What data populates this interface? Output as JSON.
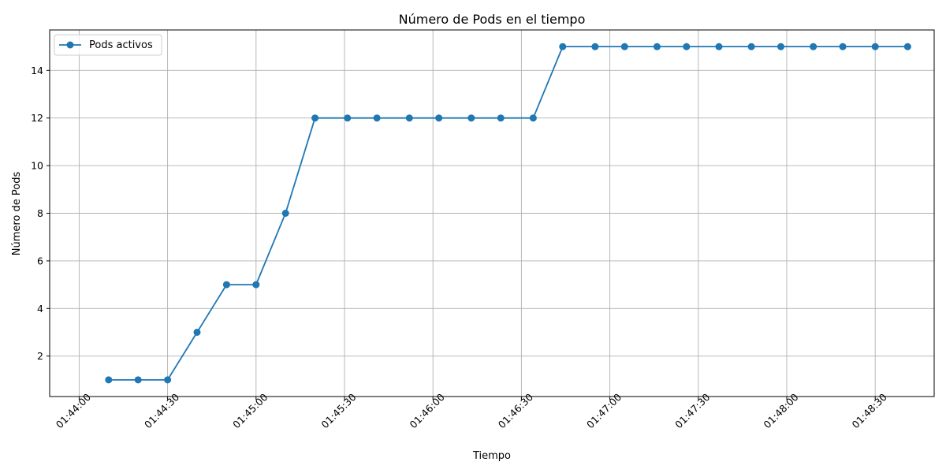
{
  "chart_data": {
    "type": "line",
    "title": "Número de Pods en el tiempo",
    "xlabel": "Tiempo",
    "ylabel": "Número de Pods",
    "x_axis": "time",
    "xlim": [
      "01:43:50",
      "01:48:50"
    ],
    "ylim": [
      0.3,
      15.7
    ],
    "x_ticks": [
      "01:44:00",
      "01:44:30",
      "01:45:00",
      "01:45:30",
      "01:46:00",
      "01:46:30",
      "01:47:00",
      "01:47:30",
      "01:48:00",
      "01:48:30"
    ],
    "y_ticks": [
      2,
      4,
      6,
      8,
      10,
      12,
      14
    ],
    "grid": true,
    "legend_position": "top-left",
    "series": [
      {
        "name": "Pods activos",
        "color": "#1f77b4",
        "marker": "circle",
        "x": [
          "01:44:10",
          "01:44:20",
          "01:44:30",
          "01:44:40",
          "01:44:50",
          "01:45:00",
          "01:45:10",
          "01:45:20",
          "01:45:31",
          "01:45:41",
          "01:45:52",
          "01:46:02",
          "01:46:13",
          "01:46:23",
          "01:46:34",
          "01:46:44",
          "01:46:55",
          "01:47:05",
          "01:47:16",
          "01:47:26",
          "01:47:37",
          "01:47:48",
          "01:47:58",
          "01:48:09",
          "01:48:19",
          "01:48:30",
          "01:48:41"
        ],
        "values": [
          1,
          1,
          1,
          3,
          5,
          5,
          8,
          12,
          12,
          12,
          12,
          12,
          12,
          12,
          12,
          15,
          15,
          15,
          15,
          15,
          15,
          15,
          15,
          15,
          15,
          15,
          15
        ]
      }
    ]
  }
}
